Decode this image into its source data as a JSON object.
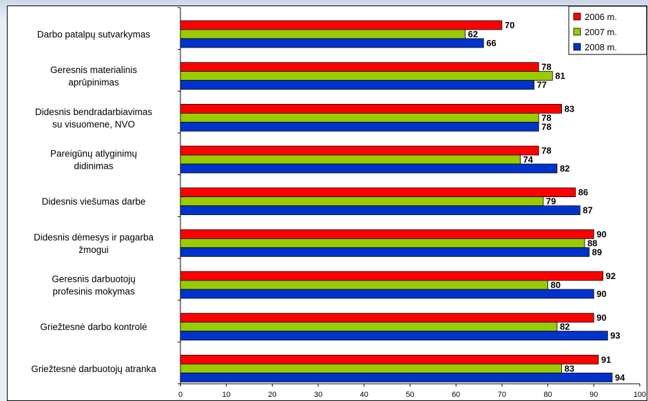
{
  "colors": {
    "series_2006": "#ff0000",
    "series_2007": "#99cc00",
    "series_2008": "#0033cc",
    "background": "#e9edf6"
  },
  "chart_data": {
    "type": "bar",
    "orientation": "horizontal",
    "categories": [
      [
        "Darbo patalpų sutvarkymas"
      ],
      [
        "Geresnis materialinis",
        "aprūpinimas"
      ],
      [
        "Didesnis bendradarbiavimas",
        "su visuomene, NVO"
      ],
      [
        "Pareigūnų atlyginimų",
        "didinimas"
      ],
      [
        "Didesnis viešumas darbe"
      ],
      [
        "Didesnis dėmesys ir pagarba",
        "žmogui"
      ],
      [
        "Geresnis darbuotojų",
        "profesinis mokymas"
      ],
      [
        "Griežtesnė darbo kontrolė"
      ],
      [
        "Griežtesnė darbuotojų atranka"
      ]
    ],
    "series": [
      {
        "name": "2006 m.",
        "color": "#ff0000",
        "values": [
          70,
          78,
          83,
          78,
          86,
          90,
          92,
          90,
          91
        ]
      },
      {
        "name": "2007 m.",
        "color": "#99cc00",
        "values": [
          62,
          81,
          78,
          74,
          79,
          88,
          80,
          82,
          83
        ]
      },
      {
        "name": "2008 m.",
        "color": "#0033cc",
        "values": [
          66,
          77,
          78,
          82,
          87,
          89,
          90,
          93,
          94
        ]
      }
    ],
    "xlim": [
      0,
      100
    ],
    "xticks": [
      0,
      10,
      20,
      30,
      40,
      50,
      60,
      70,
      80,
      90,
      100
    ],
    "grid": false,
    "legend_position": "top-right"
  }
}
